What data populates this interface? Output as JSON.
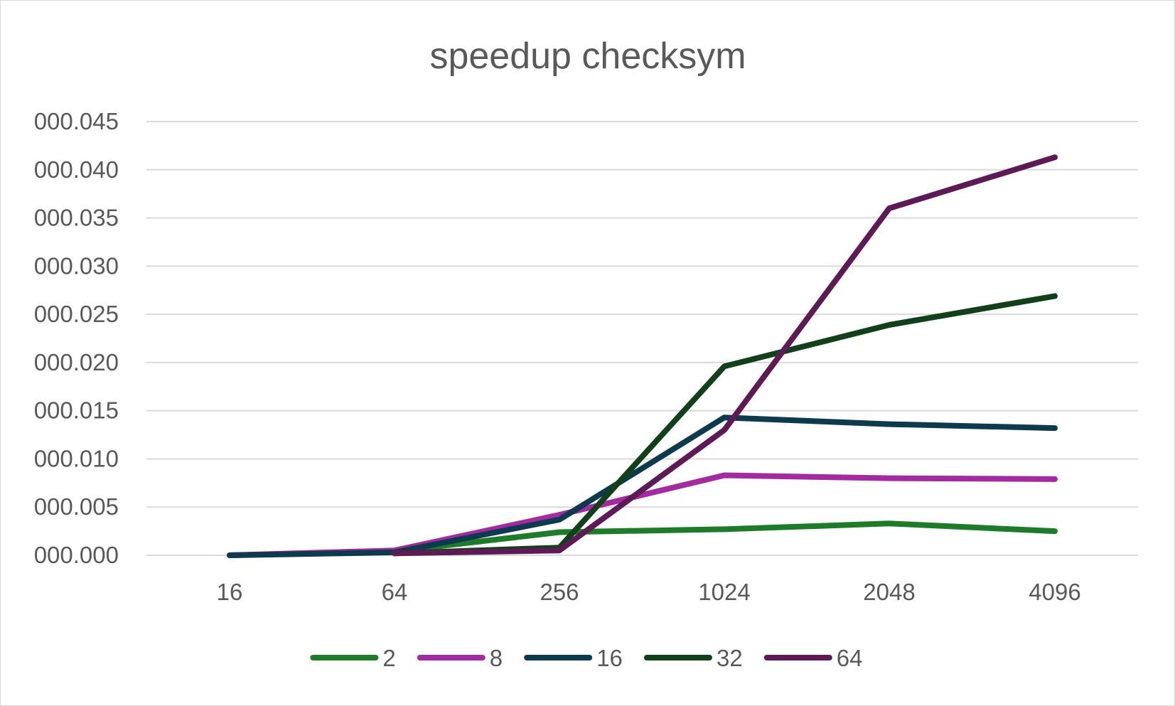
{
  "chart_data": {
    "type": "line",
    "title": "speedup checksym",
    "xlabel": "",
    "ylabel": "",
    "categories": [
      "16",
      "64",
      "256",
      "1024",
      "2048",
      "4096"
    ],
    "y_ticks": [
      "000.000",
      "000.005",
      "000.010",
      "000.015",
      "000.020",
      "000.025",
      "000.030",
      "000.035",
      "000.040",
      "000.045"
    ],
    "ylim": [
      0,
      0.045
    ],
    "grid": true,
    "legend_position": "bottom",
    "series": [
      {
        "name": "2",
        "color": "#1e7b2a",
        "values": [
          0.0,
          0.0004,
          0.0024,
          0.0027,
          0.0033,
          0.0025
        ]
      },
      {
        "name": "8",
        "color": "#a12b9f",
        "values": [
          0.0,
          0.0005,
          0.0042,
          0.0083,
          0.008,
          0.0079
        ]
      },
      {
        "name": "16",
        "color": "#0e3a4e",
        "values": [
          0.0,
          0.0003,
          0.0037,
          0.0143,
          0.0136,
          0.0132
        ]
      },
      {
        "name": "32",
        "color": "#11401a",
        "values": [
          null,
          0.0002,
          0.0008,
          0.0196,
          0.0239,
          0.0269
        ]
      },
      {
        "name": "64",
        "color": "#5d1a55",
        "values": [
          null,
          0.0002,
          0.0005,
          0.013,
          0.036,
          0.0413
        ]
      }
    ]
  }
}
